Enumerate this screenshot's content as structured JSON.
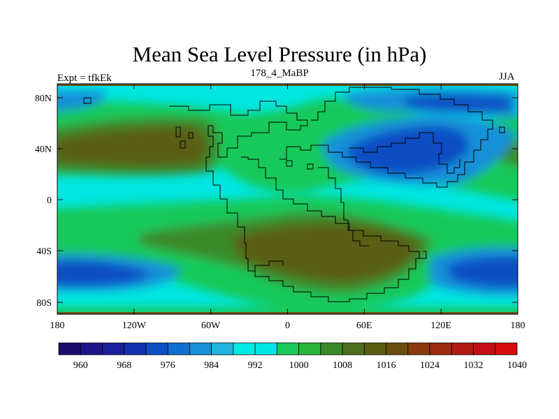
{
  "header": {
    "title": "Mean Sea Level Pressure (in hPa)",
    "left_label": "Expt = tfkEk",
    "center_label": "178_4_MaBP",
    "right_label": "JJA"
  },
  "axes": {
    "x_ticks": [
      "180",
      "120W",
      "60W",
      "0",
      "60E",
      "120E",
      "180"
    ],
    "y_ticks": [
      "80N",
      "40N",
      "0",
      "40S",
      "80S"
    ]
  },
  "colorbar": {
    "labels": [
      "960",
      "968",
      "976",
      "984",
      "992",
      "1000",
      "1008",
      "1016",
      "1024",
      "1032",
      "1040"
    ],
    "colors": [
      "#1b0c6e",
      "#1f138a",
      "#1a1f9e",
      "#1133b0",
      "#0c4ec3",
      "#0f6fd0",
      "#1590d8",
      "#21b4e0",
      "#00ebe4",
      "#00e6e8",
      "#19c95a",
      "#2ab43a",
      "#3a8a2a",
      "#4a7020",
      "#5a5e12",
      "#6a4e10",
      "#8a3a0c",
      "#9e2a0e",
      "#b01a12",
      "#c40e14",
      "#d80a10"
    ]
  },
  "map_colors": {
    "very_low": "#0c4ec3",
    "low": "#1590d8",
    "near_normal": "#00e6e0",
    "moderate": "#19c95a",
    "high": "#3a8a2a",
    "very_high": "#5a5e12",
    "top_band": "#6a4e10"
  }
}
